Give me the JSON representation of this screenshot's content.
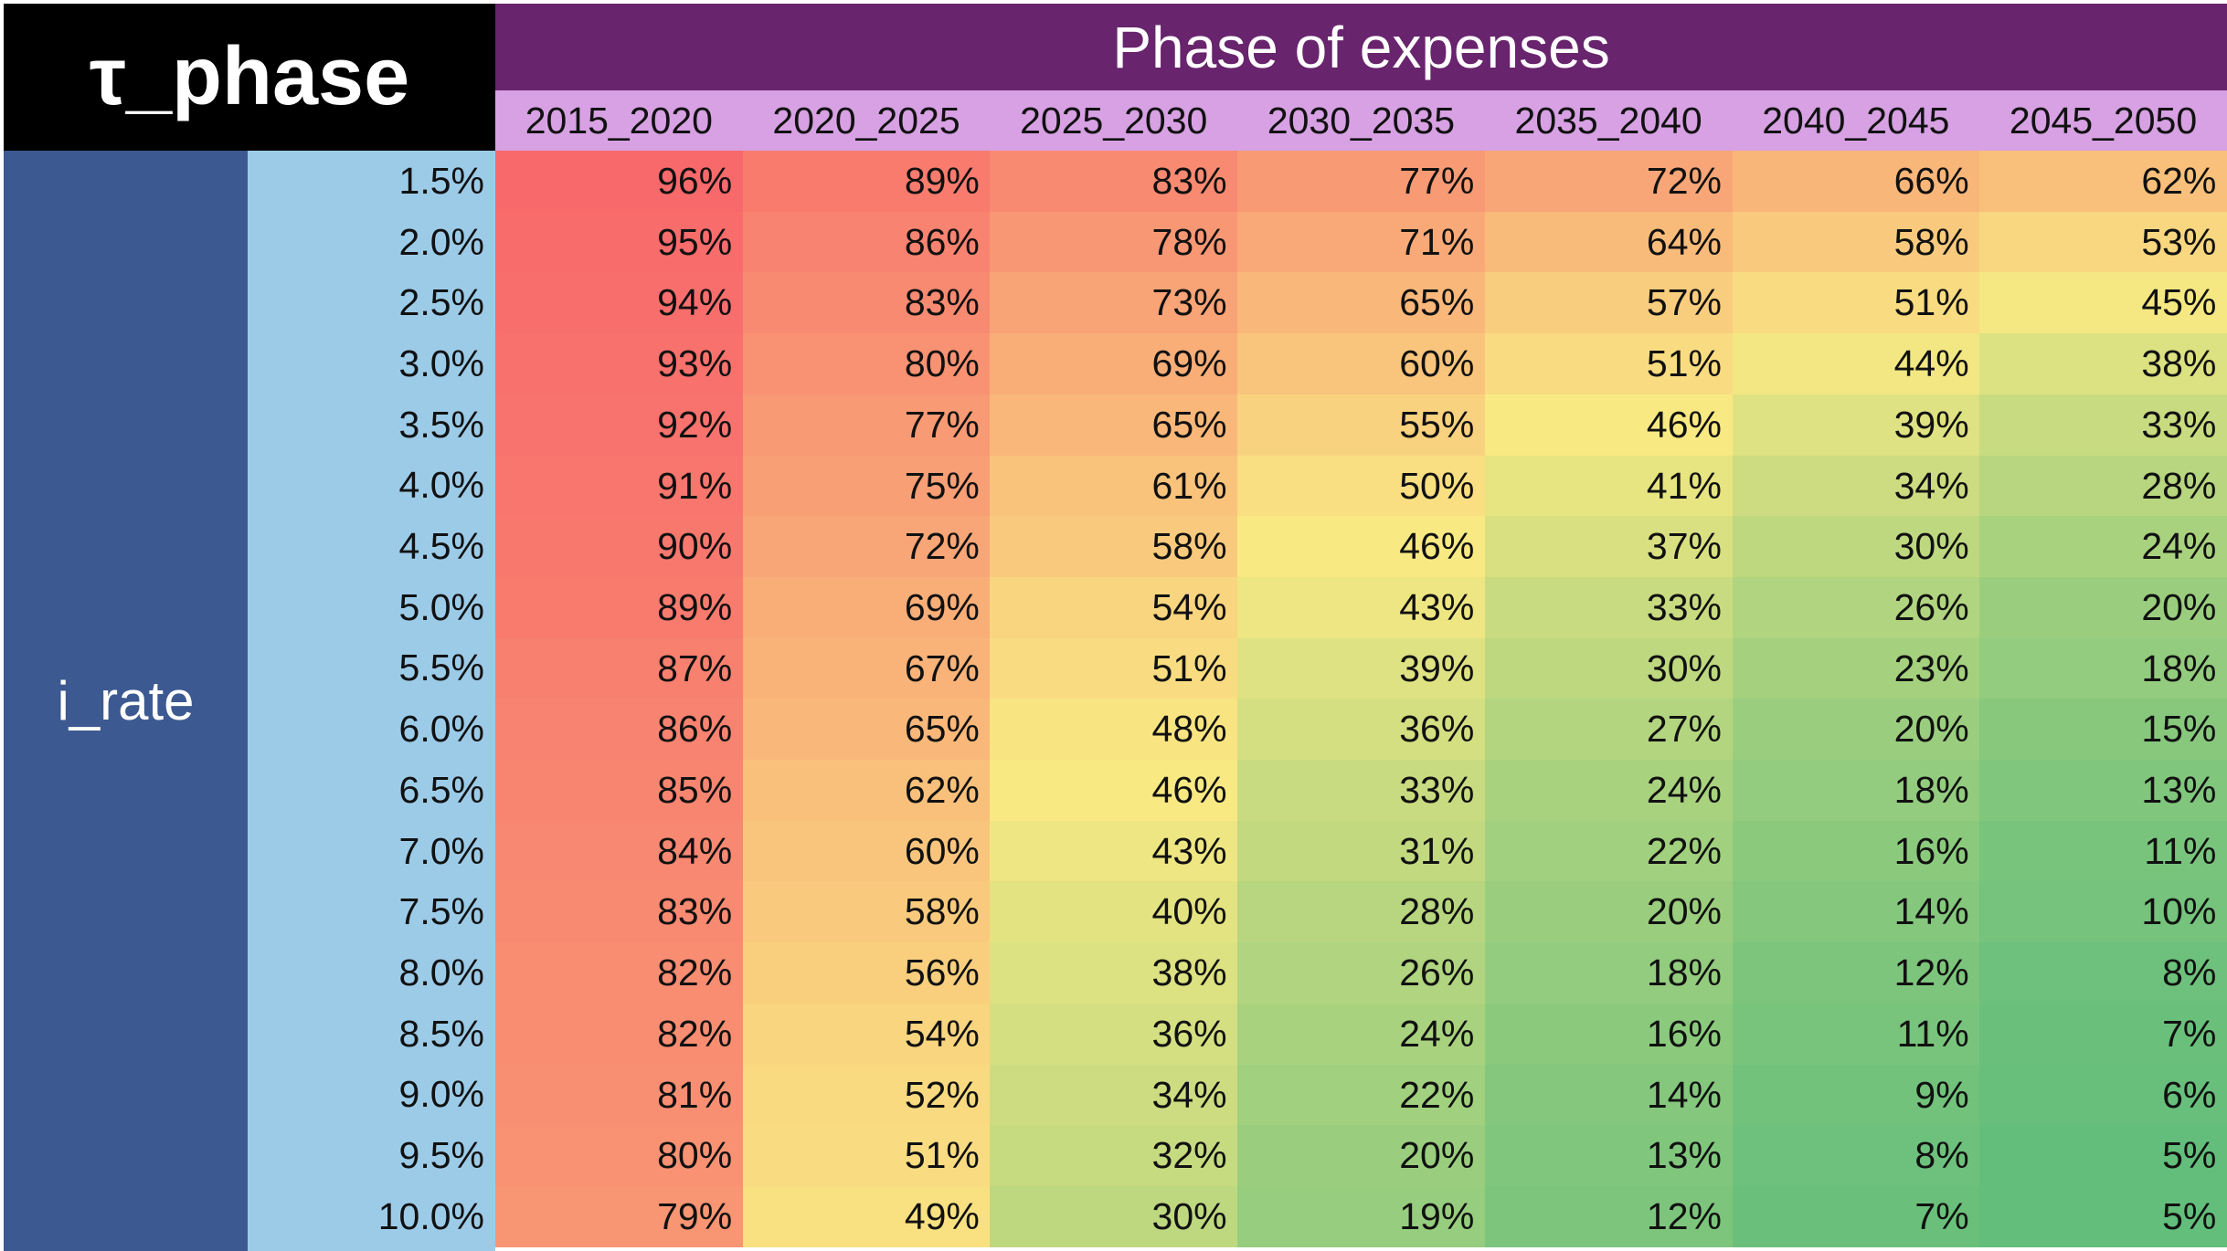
{
  "colors": {
    "corner_bg": "#000000",
    "title_band_bg": "#68246d",
    "col_header_bg": "#d7a1e3",
    "row_axis_bg": "#3c5a91",
    "row_label_bg": "#9ccbe8",
    "scale_low": "#63be7b",
    "scale_mid": "#f9e983",
    "scale_high": "#f8696b"
  },
  "chart_data": {
    "type": "heatmap",
    "title": "τ_phase",
    "xlabel": "Phase of expenses",
    "ylabel": "i_rate",
    "columns": [
      "2015_2020",
      "2020_2025",
      "2025_2030",
      "2030_2035",
      "2035_2040",
      "2040_2045",
      "2045_2050"
    ],
    "rows": [
      "1.5%",
      "2.0%",
      "2.5%",
      "3.0%",
      "3.5%",
      "4.0%",
      "4.5%",
      "5.0%",
      "5.5%",
      "6.0%",
      "6.5%",
      "7.0%",
      "7.5%",
      "8.0%",
      "8.5%",
      "9.0%",
      "9.5%",
      "10.0%"
    ],
    "values": [
      [
        96,
        89,
        83,
        77,
        72,
        66,
        62
      ],
      [
        95,
        86,
        78,
        71,
        64,
        58,
        53
      ],
      [
        94,
        83,
        73,
        65,
        57,
        51,
        45
      ],
      [
        93,
        80,
        69,
        60,
        51,
        44,
        38
      ],
      [
        92,
        77,
        65,
        55,
        46,
        39,
        33
      ],
      [
        91,
        75,
        61,
        50,
        41,
        34,
        28
      ],
      [
        90,
        72,
        58,
        46,
        37,
        30,
        24
      ],
      [
        89,
        69,
        54,
        43,
        33,
        26,
        20
      ],
      [
        87,
        67,
        51,
        39,
        30,
        23,
        18
      ],
      [
        86,
        65,
        48,
        36,
        27,
        20,
        15
      ],
      [
        85,
        62,
        46,
        33,
        24,
        18,
        13
      ],
      [
        84,
        60,
        43,
        31,
        22,
        16,
        11
      ],
      [
        83,
        58,
        40,
        28,
        20,
        14,
        10
      ],
      [
        82,
        56,
        38,
        26,
        18,
        12,
        8
      ],
      [
        82,
        54,
        36,
        24,
        16,
        11,
        7
      ],
      [
        81,
        52,
        34,
        22,
        14,
        9,
        6
      ],
      [
        80,
        51,
        32,
        20,
        13,
        8,
        5
      ],
      [
        79,
        49,
        30,
        19,
        12,
        7,
        5
      ]
    ],
    "value_suffix": "%"
  }
}
